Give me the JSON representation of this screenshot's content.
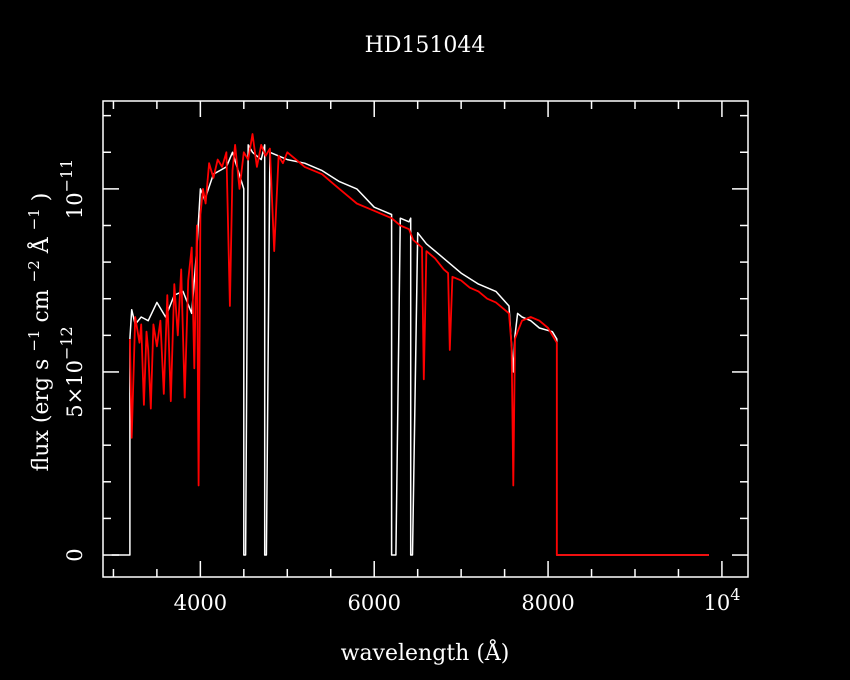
{
  "chart_data": {
    "type": "line",
    "title": "HD151044",
    "xlabel": "wavelength (Å)",
    "ylabel": {
      "p1": "flux (erg s",
      "e1": "−1",
      "p2": " cm",
      "e2": "−2",
      "p3": " Å",
      "e3": "−1",
      "p4": ")"
    },
    "xlim": [
      2880,
      10300
    ],
    "ylim": [
      -6e-13,
      1.24e-11
    ],
    "x_ticks": [
      {
        "value": 4000,
        "label": "4000"
      },
      {
        "value": 6000,
        "label": "6000"
      },
      {
        "value": 8000,
        "label": "8000"
      },
      {
        "value": 10000,
        "label": "10",
        "sup": "4"
      }
    ],
    "y_ticks": [
      {
        "value": 0,
        "label": "0"
      },
      {
        "value": 5e-12,
        "label": "5×10",
        "sup": "−12"
      },
      {
        "value": 1e-11,
        "label": "10",
        "sup": "−11"
      }
    ],
    "series": [
      {
        "color": "#ffffff",
        "x": [
          2980,
          3190,
          3190,
          3210,
          3250,
          3320,
          3400,
          3500,
          3600,
          3700,
          3800,
          3900,
          3960,
          4000,
          4050,
          4150,
          4300,
          4370,
          4500,
          4500,
          4520,
          4550,
          4600,
          4700,
          4740,
          4740,
          4760,
          4800,
          4900,
          5000,
          5200,
          5400,
          5600,
          5800,
          6000,
          6100,
          6200,
          6200,
          6250,
          6300,
          6400,
          6420,
          6420,
          6440,
          6500,
          6600,
          6800,
          7000,
          7200,
          7400,
          7550,
          7600,
          7620,
          7650,
          7700,
          7800,
          7900,
          8050,
          8100,
          8100,
          8400,
          9000,
          9500,
          9850
        ],
        "y": [
          0,
          0,
          5.9e-12,
          6.7e-12,
          6.3e-12,
          6.5e-12,
          6.4e-12,
          6.9e-12,
          6.5e-12,
          7.1e-12,
          7.2e-12,
          6.6e-12,
          8.4e-12,
          1e-11,
          9.7e-12,
          1.04e-11,
          1.06e-11,
          1.1e-11,
          1e-11,
          0,
          0,
          1.12e-11,
          1.1e-11,
          1.08e-11,
          1.12e-11,
          0,
          0,
          1.1e-11,
          1.09e-11,
          1.08e-11,
          1.07e-11,
          1.05e-11,
          1.02e-11,
          1e-11,
          9.5e-12,
          9.4e-12,
          9.3e-12,
          0,
          0,
          9.2e-12,
          9.1e-12,
          9.2e-12,
          0,
          0,
          8.8e-12,
          8.5e-12,
          8.1e-12,
          7.7e-12,
          7.4e-12,
          7.2e-12,
          6.8e-12,
          5e-12,
          6e-12,
          6.6e-12,
          6.5e-12,
          6.4e-12,
          6.2e-12,
          6.1e-12,
          5.9e-12,
          0,
          0,
          0,
          0,
          0
        ]
      },
      {
        "color": "#ff0000",
        "x": [
          3190,
          3210,
          3250,
          3300,
          3320,
          3350,
          3380,
          3400,
          3430,
          3460,
          3500,
          3540,
          3580,
          3620,
          3660,
          3700,
          3740,
          3780,
          3820,
          3860,
          3900,
          3930,
          3960,
          3980,
          4000,
          4030,
          4060,
          4100,
          4150,
          4200,
          4250,
          4300,
          4340,
          4370,
          4400,
          4450,
          4500,
          4550,
          4600,
          4650,
          4700,
          4750,
          4800,
          4850,
          4900,
          4950,
          5000,
          5100,
          5200,
          5300,
          5400,
          5500,
          5600,
          5700,
          5800,
          5900,
          6000,
          6100,
          6200,
          6300,
          6400,
          6450,
          6500,
          6550,
          6570,
          6600,
          6700,
          6800,
          6850,
          6870,
          6900,
          7000,
          7100,
          7200,
          7300,
          7400,
          7500,
          7550,
          7580,
          7600,
          7620,
          7650,
          7700,
          7800,
          7900,
          8000,
          8050,
          8100,
          8100,
          8400,
          9000,
          9500,
          9850
        ],
        "y": [
          5.9e-12,
          3.2e-12,
          6.5e-12,
          5.8e-12,
          6.3e-12,
          4.1e-12,
          6.1e-12,
          5.6e-12,
          4e-12,
          6.3e-12,
          5.7e-12,
          6.4e-12,
          4.4e-12,
          7.1e-12,
          4.2e-12,
          7.4e-12,
          6e-12,
          7.8e-12,
          4.3e-12,
          7.5e-12,
          8.4e-12,
          5.1e-12,
          9e-12,
          1.9e-12,
          9.3e-12,
          1e-11,
          9.6e-12,
          1.07e-11,
          1.03e-11,
          1.08e-11,
          1.06e-11,
          1.1e-11,
          6.8e-12,
          1.05e-11,
          1.12e-11,
          1e-11,
          1.1e-11,
          1.08e-11,
          1.15e-11,
          1.06e-11,
          1.12e-11,
          1.09e-11,
          1.11e-11,
          8.3e-12,
          1.09e-11,
          1.07e-11,
          1.1e-11,
          1.08e-11,
          1.06e-11,
          1.05e-11,
          1.04e-11,
          1.02e-11,
          1e-11,
          9.8e-12,
          9.6e-12,
          9.5e-12,
          9.4e-12,
          9.3e-12,
          9.2e-12,
          9e-12,
          8.9e-12,
          8.6e-12,
          8.5e-12,
          8.4e-12,
          4.8e-12,
          8.3e-12,
          8.1e-12,
          7.8e-12,
          7.7e-12,
          5.6e-12,
          7.6e-12,
          7.5e-12,
          7.3e-12,
          7.2e-12,
          7e-12,
          6.9e-12,
          6.7e-12,
          6.6e-12,
          5.7e-12,
          1.9e-12,
          5.9e-12,
          6.1e-12,
          6.4e-12,
          6.5e-12,
          6.4e-12,
          6.2e-12,
          6e-12,
          5.8e-12,
          0,
          0,
          0,
          0,
          0
        ]
      }
    ]
  }
}
